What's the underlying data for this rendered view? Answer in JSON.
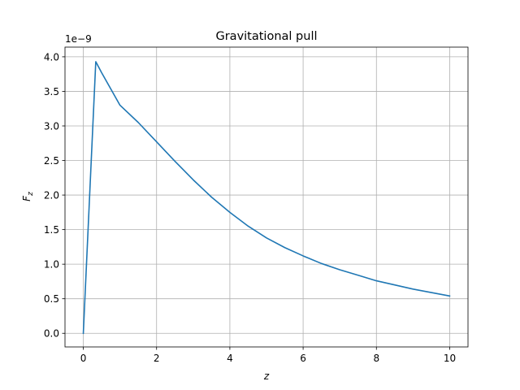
{
  "chart_data": {
    "type": "line",
    "title": "Gravitational pull",
    "xlabel": "z",
    "ylabel_main": "F",
    "ylabel_sub": "z",
    "y_offset_label": "1e−9",
    "xlim": [
      -0.5,
      10.5
    ],
    "ylim": [
      -0.197,
      4.14
    ],
    "grid": true,
    "x_ticks": [
      0,
      2,
      4,
      6,
      8,
      10
    ],
    "x_tick_labels": [
      "0",
      "2",
      "4",
      "6",
      "8",
      "10"
    ],
    "y_ticks": [
      0.0,
      0.5,
      1.0,
      1.5,
      2.0,
      2.5,
      3.0,
      3.5,
      4.0
    ],
    "y_tick_labels": [
      "0.0",
      "0.5",
      "1.0",
      "1.5",
      "2.0",
      "2.5",
      "3.0",
      "3.5",
      "4.0"
    ],
    "series": [
      {
        "color": "#1f77b4",
        "x": [
          0.0,
          0.34,
          0.5,
          1.0,
          1.5,
          2.0,
          2.5,
          3.0,
          3.5,
          4.0,
          4.5,
          5.0,
          5.5,
          6.0,
          6.5,
          7.0,
          7.5,
          8.0,
          8.5,
          9.0,
          9.5,
          10.0
        ],
        "y": [
          0.0,
          3.93,
          3.77,
          3.3,
          3.05,
          2.77,
          2.49,
          2.22,
          1.97,
          1.75,
          1.55,
          1.38,
          1.24,
          1.12,
          1.01,
          0.92,
          0.84,
          0.76,
          0.7,
          0.64,
          0.59,
          0.54
        ]
      }
    ]
  }
}
